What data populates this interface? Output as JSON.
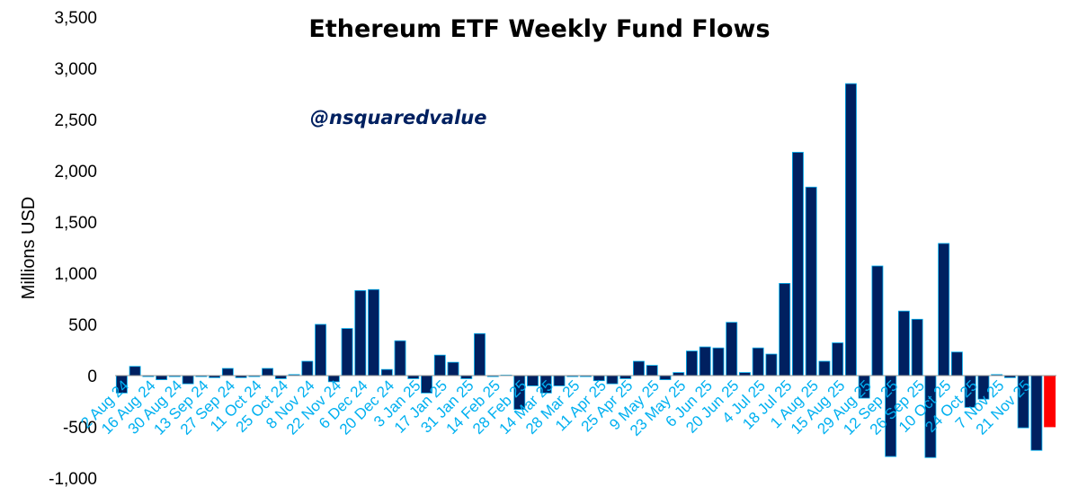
{
  "chart_data": {
    "type": "bar",
    "title": "Ethereum ETF Weekly Fund Flows",
    "ylabel": "Millions USD",
    "xlabel": "",
    "ylim": [
      -1000,
      3500
    ],
    "yticks": [
      3500,
      3000,
      2500,
      2000,
      1500,
      1000,
      500,
      0,
      -500,
      -1000
    ],
    "ytick_labels": [
      "3,500",
      "3,000",
      "2,500",
      "2,000",
      "1,500",
      "1,000",
      "500",
      "0",
      "-500",
      "-1,000"
    ],
    "watermark": "@nsquaredvalue",
    "x_tick_labels": [
      "2 Aug 24",
      "16 Aug 24",
      "30 Aug 24",
      "13 Sep 24",
      "27 Sep 24",
      "11 Oct 24",
      "25 Oct 24",
      "8 Nov 24",
      "22 Nov 24",
      "6 Dec 24",
      "20 Dec 24",
      "3 Jan 25",
      "17 Jan 25",
      "31 Jan 25",
      "14 Feb 25",
      "28 Feb 25",
      "14 Mar 25",
      "28 Mar 25",
      "11 Apr 25",
      "25 Apr 25",
      "9 May 25",
      "23 May 25",
      "6 Jun 25",
      "20 Jun 25",
      "4 Jul 25",
      "18 Jul 25",
      "1 Aug 25",
      "15 Aug 25",
      "29 Aug 25",
      "12 Sep 25",
      "26 Sep 25",
      "10 Oct 25",
      "24 Oct 25",
      "7 Nov 25",
      "21 Nov 25"
    ],
    "values": [
      -170,
      90,
      -10,
      -40,
      -10,
      -80,
      -10,
      -20,
      70,
      -20,
      -10,
      70,
      -30,
      10,
      140,
      500,
      -60,
      460,
      830,
      840,
      60,
      340,
      -30,
      -170,
      200,
      130,
      -30,
      410,
      -10,
      5,
      -330,
      -100,
      -170,
      -100,
      -10,
      -10,
      -50,
      -80,
      -30,
      140,
      100,
      -40,
      30,
      240,
      280,
      270,
      520,
      30,
      270,
      210,
      900,
      2180,
      1840,
      140,
      320,
      2850,
      -220,
      1070,
      -790,
      630,
      550,
      -800,
      1290,
      230,
      -310,
      -230,
      10,
      -20,
      -510,
      -730,
      -500
    ],
    "colors": {
      "bar": "#002060",
      "bar_edge": "#00b0f0",
      "highlight": "#ff0000",
      "axis_label": "#00b0f0",
      "watermark": "#002060"
    },
    "highlight_last": true,
    "grid": false,
    "legend": "none"
  }
}
